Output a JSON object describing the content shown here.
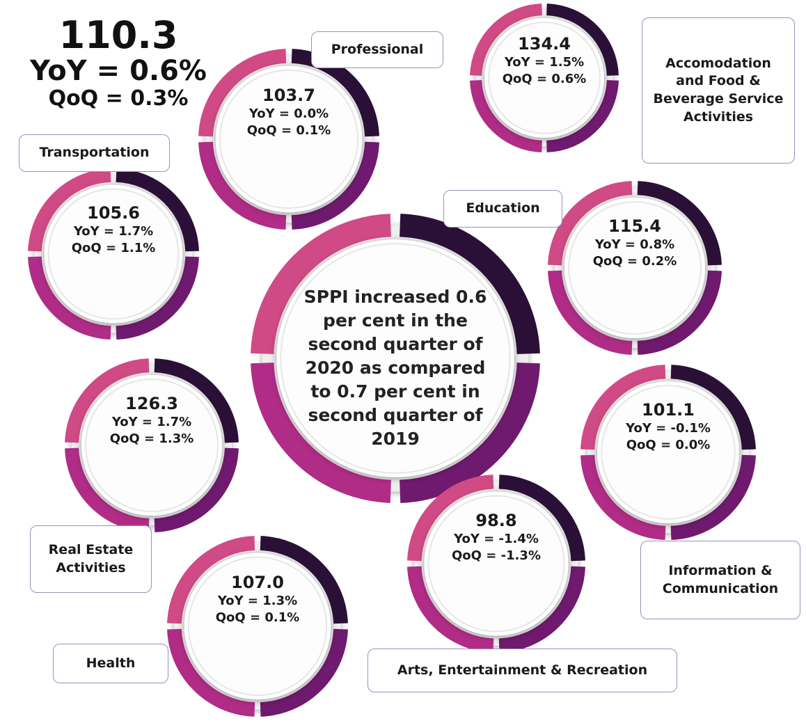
{
  "headline": {
    "index": "110.3",
    "yoy": "YoY = 0.6%",
    "qoq": "QoQ = 0.3%"
  },
  "center_text": "SPPI increased 0.6 per cent in the second quarter of 2020 as compared to 0.7 per cent in second quarter of 2019",
  "sectors": [
    {
      "label": "Professional",
      "index": "103.7",
      "yoy": "YoY = 0.0%",
      "qoq": "QoQ = 0.1%"
    },
    {
      "label": "Accomodation and Food & Beverage Service Activities",
      "index": "134.4",
      "yoy": "YoY = 1.5%",
      "qoq": "QoQ = 0.6%"
    },
    {
      "label": "Transportation",
      "index": "105.6",
      "yoy": "YoY = 1.7%",
      "qoq": "QoQ = 1.1%"
    },
    {
      "label": "Education",
      "index": "115.4",
      "yoy": "YoY = 0.8%",
      "qoq": "QoQ = 0.2%"
    },
    {
      "label": "Real Estate Activities",
      "index": "126.3",
      "yoy": "YoY = 1.7%",
      "qoq": "QoQ = 1.3%"
    },
    {
      "label": "Information & Communication",
      "index": "101.1",
      "yoy": "YoY = -0.1%",
      "qoq": "QoQ = 0.0%"
    },
    {
      "label": "Arts,  Entertainment & Recreation",
      "index": "98.8",
      "yoy": "YoY = -1.4%",
      "qoq": "QoQ =  -1.3%"
    },
    {
      "label": "Health",
      "index": "107.0",
      "yoy": "YoY = 1.3%",
      "qoq": "QoQ = 0.1%"
    }
  ]
}
